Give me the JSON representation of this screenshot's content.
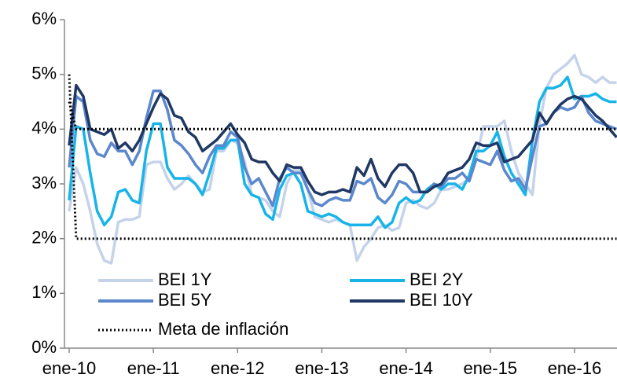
{
  "chart_data": {
    "type": "line",
    "categories": [
      "ene-10",
      null,
      null,
      null,
      null,
      null,
      null,
      null,
      null,
      null,
      null,
      null,
      "ene-11",
      null,
      null,
      null,
      null,
      null,
      null,
      null,
      null,
      null,
      null,
      null,
      "ene-12",
      null,
      null,
      null,
      null,
      null,
      null,
      null,
      null,
      null,
      null,
      null,
      "ene-13",
      null,
      null,
      null,
      null,
      null,
      null,
      null,
      null,
      null,
      null,
      null,
      "ene-14",
      null,
      null,
      null,
      null,
      null,
      null,
      null,
      null,
      null,
      null,
      null,
      "ene-15",
      null,
      null,
      null,
      null,
      null,
      null,
      null,
      null,
      null,
      null,
      null,
      "ene-16",
      null,
      null,
      null,
      null,
      null,
      null
    ],
    "ylim": [
      0,
      6
    ],
    "yticks": [
      {
        "value": 0,
        "label": "0%"
      },
      {
        "value": 1,
        "label": "1%"
      },
      {
        "value": 2,
        "label": "2%"
      },
      {
        "value": 3,
        "label": "3%"
      },
      {
        "value": 4,
        "label": "4%"
      },
      {
        "value": 5,
        "label": "5%"
      },
      {
        "value": 6,
        "label": "6%"
      }
    ],
    "series": [
      {
        "name": "BEI 1Y",
        "color": "#c5d3ea",
        "values": [
          2.5,
          3.3,
          3.0,
          2.5,
          1.9,
          1.6,
          1.55,
          2.3,
          2.35,
          2.35,
          2.4,
          3.35,
          3.4,
          3.4,
          3.1,
          2.9,
          3.0,
          3.15,
          3.0,
          2.85,
          2.9,
          3.6,
          3.6,
          3.8,
          3.75,
          3.4,
          2.8,
          2.75,
          2.7,
          2.5,
          2.4,
          3.0,
          3.25,
          3.25,
          2.9,
          2.4,
          2.35,
          2.3,
          2.35,
          2.3,
          2.25,
          1.6,
          1.85,
          2.0,
          2.2,
          2.25,
          2.15,
          2.2,
          2.65,
          2.7,
          2.6,
          2.55,
          2.65,
          2.9,
          2.9,
          2.95,
          3.0,
          3.1,
          3.45,
          4.05,
          4.05,
          4.05,
          4.15,
          3.6,
          3.2,
          3.0,
          2.8,
          4.1,
          4.75,
          5.0,
          5.1,
          5.2,
          5.35,
          5.0,
          4.95,
          4.85,
          4.95,
          4.85,
          4.85
        ]
      },
      {
        "name": "BEI 2Y",
        "color": "#18b4e8",
        "values": [
          2.7,
          4.05,
          4.0,
          3.2,
          2.5,
          2.25,
          2.4,
          2.85,
          2.9,
          2.7,
          2.65,
          3.6,
          4.1,
          4.1,
          3.3,
          3.1,
          3.1,
          3.1,
          3.0,
          2.8,
          3.2,
          3.65,
          3.65,
          3.8,
          3.8,
          3.0,
          2.8,
          2.75,
          2.45,
          2.35,
          2.9,
          3.15,
          3.2,
          3.0,
          2.5,
          2.45,
          2.4,
          2.45,
          2.4,
          2.3,
          2.25,
          2.25,
          2.25,
          2.25,
          2.4,
          2.2,
          2.3,
          2.65,
          2.75,
          2.65,
          2.7,
          2.9,
          3.0,
          2.9,
          3.0,
          3.0,
          2.9,
          3.15,
          3.6,
          3.6,
          3.7,
          3.95,
          3.5,
          3.2,
          3.0,
          2.8,
          3.8,
          4.5,
          4.75,
          4.75,
          4.8,
          4.95,
          4.55,
          4.6,
          4.6,
          4.65,
          4.55,
          4.5,
          4.5
        ]
      },
      {
        "name": "BEI 5Y",
        "color": "#5b87cc",
        "values": [
          3.3,
          4.6,
          4.5,
          3.8,
          3.55,
          3.5,
          3.75,
          3.6,
          3.6,
          3.35,
          3.6,
          4.2,
          4.7,
          4.7,
          4.35,
          3.8,
          3.7,
          3.55,
          3.35,
          3.2,
          3.5,
          3.7,
          3.7,
          3.95,
          3.85,
          3.3,
          3.0,
          3.1,
          2.85,
          2.6,
          3.1,
          3.3,
          3.2,
          3.2,
          2.9,
          2.65,
          2.6,
          2.7,
          2.75,
          2.7,
          2.7,
          3.05,
          3.0,
          3.1,
          2.75,
          2.65,
          2.8,
          3.05,
          3.0,
          2.85,
          2.85,
          2.85,
          3.0,
          2.95,
          3.1,
          3.1,
          3.2,
          3.05,
          3.45,
          3.4,
          3.35,
          3.6,
          3.25,
          3.05,
          3.1,
          2.9,
          3.5,
          4.05,
          4.1,
          4.3,
          4.4,
          4.35,
          4.4,
          4.6,
          4.3,
          4.15,
          4.1,
          4.05,
          4.0
        ]
      },
      {
        "name": "BEI 10Y",
        "color": "#1f3864",
        "values": [
          3.7,
          4.8,
          4.6,
          4.0,
          3.95,
          3.9,
          4.0,
          3.65,
          3.75,
          3.6,
          3.8,
          4.1,
          4.4,
          4.65,
          4.55,
          4.25,
          4.2,
          3.95,
          3.85,
          3.6,
          3.7,
          3.8,
          3.95,
          4.1,
          3.9,
          3.75,
          3.45,
          3.4,
          3.4,
          3.2,
          3.05,
          3.35,
          3.3,
          3.3,
          3.05,
          2.85,
          2.8,
          2.85,
          2.85,
          2.9,
          2.85,
          3.3,
          3.15,
          3.45,
          3.1,
          2.95,
          3.2,
          3.35,
          3.35,
          3.2,
          2.85,
          2.85,
          2.95,
          3.0,
          3.2,
          3.25,
          3.3,
          3.45,
          3.75,
          3.7,
          3.7,
          3.75,
          3.4,
          3.45,
          3.5,
          3.65,
          3.8,
          4.3,
          4.1,
          4.3,
          4.45,
          4.55,
          4.6,
          4.55,
          4.4,
          4.25,
          4.15,
          4.0,
          3.85
        ]
      },
      {
        "name": "Meta de inflación",
        "color": "#000000",
        "dotted": true,
        "values": [
          4.5,
          4,
          4,
          4,
          4,
          4,
          4,
          4,
          4,
          4,
          4,
          4,
          4,
          4,
          4,
          4,
          4,
          4,
          4,
          4,
          4,
          4,
          4,
          4,
          4,
          4,
          4,
          4,
          4,
          4,
          4,
          4,
          4,
          4,
          4,
          4,
          4,
          4,
          4,
          4,
          4,
          4,
          4,
          4,
          4,
          4,
          4,
          4,
          4,
          4,
          4,
          4,
          4,
          4,
          4,
          4,
          4,
          4,
          4,
          4,
          4,
          4,
          4,
          4,
          4,
          4,
          4,
          4,
          4,
          4,
          4,
          4,
          4,
          4,
          4,
          4,
          4,
          4,
          4
        ],
        "lower": [
          5,
          2,
          2,
          2,
          2,
          2,
          2,
          2,
          2,
          2,
          2,
          2,
          2,
          2,
          2,
          2,
          2,
          2,
          2,
          2,
          2,
          2,
          2,
          2,
          2,
          2,
          2,
          2,
          2,
          2,
          2,
          2,
          2,
          2,
          2,
          2,
          2,
          2,
          2,
          2,
          2,
          2,
          2,
          2,
          2,
          2,
          2,
          2,
          2,
          2,
          2,
          2,
          2,
          2,
          2,
          2,
          2,
          2,
          2,
          2,
          2,
          2,
          2,
          2,
          2,
          2,
          2,
          2,
          2,
          2,
          2,
          2,
          2,
          2,
          2,
          2,
          2,
          2,
          2
        ]
      }
    ]
  }
}
